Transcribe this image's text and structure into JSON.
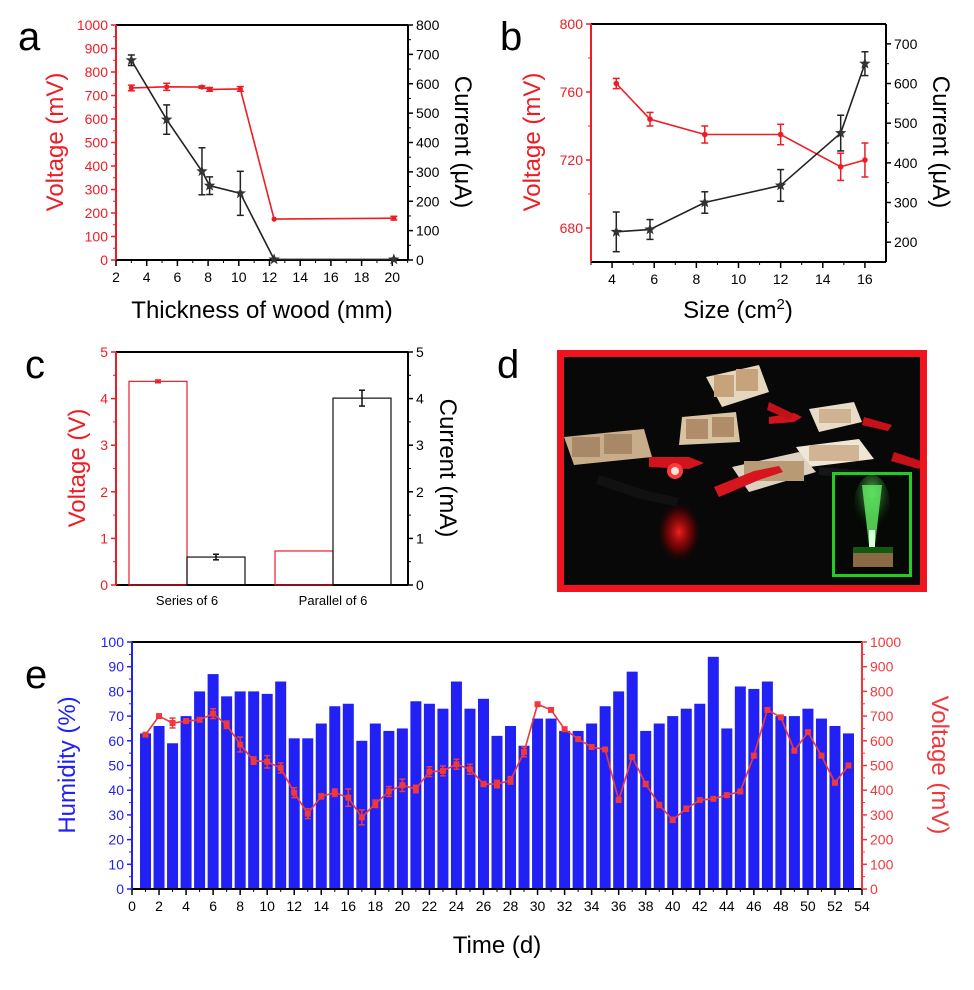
{
  "panels": {
    "a": {
      "letter": "a"
    },
    "b": {
      "letter": "b"
    },
    "c": {
      "letter": "c"
    },
    "d": {
      "letter": "d",
      "description": "Photo of six wood-based devices connected with red and black alligator clips lighting a red LED; inset shows green fiber-optic lamp lit",
      "colors": {
        "frame": "#f0141e",
        "inset_frame": "#22cc22"
      }
    },
    "e": {
      "letter": "e"
    }
  },
  "colors": {
    "voltage": "#ee1c25",
    "current": "#222222",
    "humidity": "#2121f5",
    "voltage_e": "#f0383c"
  },
  "chart_data": [
    {
      "id": "a",
      "type": "line",
      "title": "",
      "xlabel": "Thickness of wood (mm)",
      "ylabel": "Voltage (mV)",
      "y2label": "Current (μA)",
      "x_ticks": [
        "2",
        "4",
        "6",
        "8",
        "10",
        "12",
        "14",
        "16",
        "18",
        "20"
      ],
      "x_note": "broken axis: ticks evenly spaced, last tick labeled 20",
      "x": [
        3,
        5.3,
        7.6,
        8.1,
        10.1,
        12.3,
        20.1
      ],
      "x_positions": [
        3,
        5.3,
        7.6,
        8.1,
        10.1,
        12.3,
        20.1
      ],
      "ylim": [
        0,
        1000
      ],
      "y_ticks": [
        "0",
        "100",
        "200",
        "300",
        "400",
        "500",
        "600",
        "700",
        "800",
        "900",
        "1000"
      ],
      "y2lim": [
        0,
        800
      ],
      "y2_ticks": [
        "0",
        "100",
        "200",
        "300",
        "400",
        "500",
        "600",
        "700",
        "800"
      ],
      "series": [
        {
          "name": "Voltage",
          "axis": "left",
          "marker": "circle",
          "values": [
            732,
            737,
            736,
            726,
            728,
            174,
            178
          ],
          "errors": [
            12,
            15,
            5,
            8,
            10,
            4,
            8
          ]
        },
        {
          "name": "Current",
          "axis": "right",
          "marker": "star",
          "values": [
            680,
            478,
            302,
            253,
            227,
            2,
            2
          ],
          "errors": [
            18,
            50,
            80,
            30,
            75,
            2,
            2
          ]
        }
      ]
    },
    {
      "id": "b",
      "type": "line",
      "title": "",
      "xlabel": "Size (cm",
      "xlabel_sup": "2",
      "xlabel_end": ")",
      "ylabel": "Voltage (mV)",
      "y2label": "Current (μA)",
      "xlim": [
        3,
        17
      ],
      "x_ticks": [
        "4",
        "6",
        "8",
        "10",
        "12",
        "14",
        "16"
      ],
      "ylim": [
        660,
        800
      ],
      "y_ticks": [
        "680",
        "720",
        "760",
        "800"
      ],
      "y2lim": [
        150,
        750
      ],
      "y2_ticks": [
        "200",
        "300",
        "400",
        "500",
        "600",
        "700"
      ],
      "x": [
        4.2,
        5.8,
        8.4,
        12,
        14.85,
        16
      ],
      "series": [
        {
          "name": "Voltage",
          "axis": "left",
          "marker": "circle",
          "values": [
            765,
            744,
            735,
            735,
            716,
            720
          ],
          "errors": [
            3,
            4,
            5,
            6,
            8,
            10
          ]
        },
        {
          "name": "Current",
          "axis": "right",
          "marker": "star",
          "values": [
            226,
            232,
            300,
            343,
            475,
            650
          ],
          "errors": [
            50,
            25,
            27,
            40,
            45,
            30
          ]
        }
      ]
    },
    {
      "id": "c",
      "type": "bar",
      "title": "",
      "categories": [
        "Series of 6",
        "Parallel of 6"
      ],
      "ylabel": "Voltage (V)",
      "y2label": "Current (mA)",
      "ylim": [
        0,
        5
      ],
      "y_ticks": [
        "0",
        "1",
        "2",
        "3",
        "4",
        "5"
      ],
      "y2lim": [
        0,
        5
      ],
      "y2_ticks": [
        "0",
        "1",
        "2",
        "3",
        "4",
        "5"
      ],
      "series": [
        {
          "name": "Voltage",
          "axis": "left",
          "pattern": "hatched-red",
          "values": [
            4.37,
            0.73
          ],
          "errors": [
            0.03,
            0
          ]
        },
        {
          "name": "Current",
          "axis": "right",
          "pattern": "hatched-black",
          "values": [
            0.6,
            4.01
          ],
          "errors": [
            0.06,
            0.17
          ]
        }
      ]
    },
    {
      "id": "e",
      "type": "bar",
      "title": "",
      "xlabel": "Time (d)",
      "ylabel": "Humidity (%)",
      "y2label": "Voltage (mV)",
      "xlim": [
        0,
        54
      ],
      "x_ticks": [
        "0",
        "2",
        "4",
        "6",
        "8",
        "10",
        "12",
        "14",
        "16",
        "18",
        "20",
        "22",
        "24",
        "26",
        "28",
        "30",
        "32",
        "34",
        "36",
        "38",
        "40",
        "42",
        "44",
        "46",
        "48",
        "50",
        "52",
        "54"
      ],
      "ylim": [
        0,
        100
      ],
      "y_ticks": [
        "0",
        "10",
        "20",
        "30",
        "40",
        "50",
        "60",
        "70",
        "80",
        "90",
        "100"
      ],
      "y2lim": [
        0,
        1000
      ],
      "y2_ticks": [
        "0",
        "100",
        "200",
        "300",
        "400",
        "500",
        "600",
        "700",
        "800",
        "900",
        "1000"
      ],
      "x": [
        1,
        2,
        3,
        4,
        5,
        6,
        7,
        8,
        9,
        10,
        11,
        12,
        13,
        14,
        15,
        16,
        17,
        18,
        19,
        20,
        21,
        22,
        23,
        24,
        25,
        26,
        27,
        28,
        29,
        30,
        31,
        32,
        33,
        34,
        35,
        36,
        37,
        38,
        39,
        40,
        41,
        42,
        43,
        44,
        45,
        46,
        47,
        48,
        49,
        50,
        51,
        52,
        53
      ],
      "series": [
        {
          "name": "Humidity",
          "axis": "left",
          "kind": "bar",
          "values": [
            63,
            66,
            59,
            70,
            80,
            87,
            78,
            80,
            80,
            79,
            84,
            61,
            61,
            67,
            74,
            75,
            60,
            67,
            64,
            65,
            76,
            75,
            73,
            84,
            73,
            77,
            62,
            66,
            58,
            69,
            69,
            64,
            64,
            67,
            74,
            80,
            88,
            64,
            67,
            70,
            73,
            75,
            94,
            65,
            82,
            81,
            84,
            70,
            70,
            73,
            69,
            66,
            63
          ]
        },
        {
          "name": "Voltage",
          "axis": "right",
          "kind": "line",
          "values": [
            625,
            700,
            672,
            680,
            685,
            710,
            665,
            585,
            520,
            515,
            490,
            390,
            305,
            375,
            390,
            370,
            290,
            345,
            395,
            420,
            405,
            475,
            478,
            505,
            485,
            425,
            425,
            440,
            555,
            748,
            725,
            647,
            607,
            575,
            565,
            360,
            535,
            425,
            340,
            280,
            325,
            360,
            365,
            380,
            395,
            540,
            725,
            695,
            560,
            635,
            540,
            430,
            500
          ],
          "errors": [
            5,
            5,
            20,
            8,
            8,
            20,
            15,
            30,
            15,
            25,
            20,
            20,
            20,
            10,
            15,
            35,
            30,
            15,
            20,
            25,
            15,
            20,
            20,
            20,
            20,
            10,
            15,
            15,
            20,
            8,
            8,
            8,
            5,
            5,
            5,
            5,
            8,
            10,
            10,
            10,
            10,
            8,
            8,
            5,
            5,
            8,
            8,
            5,
            8,
            8,
            8,
            8,
            8
          ]
        }
      ]
    }
  ]
}
